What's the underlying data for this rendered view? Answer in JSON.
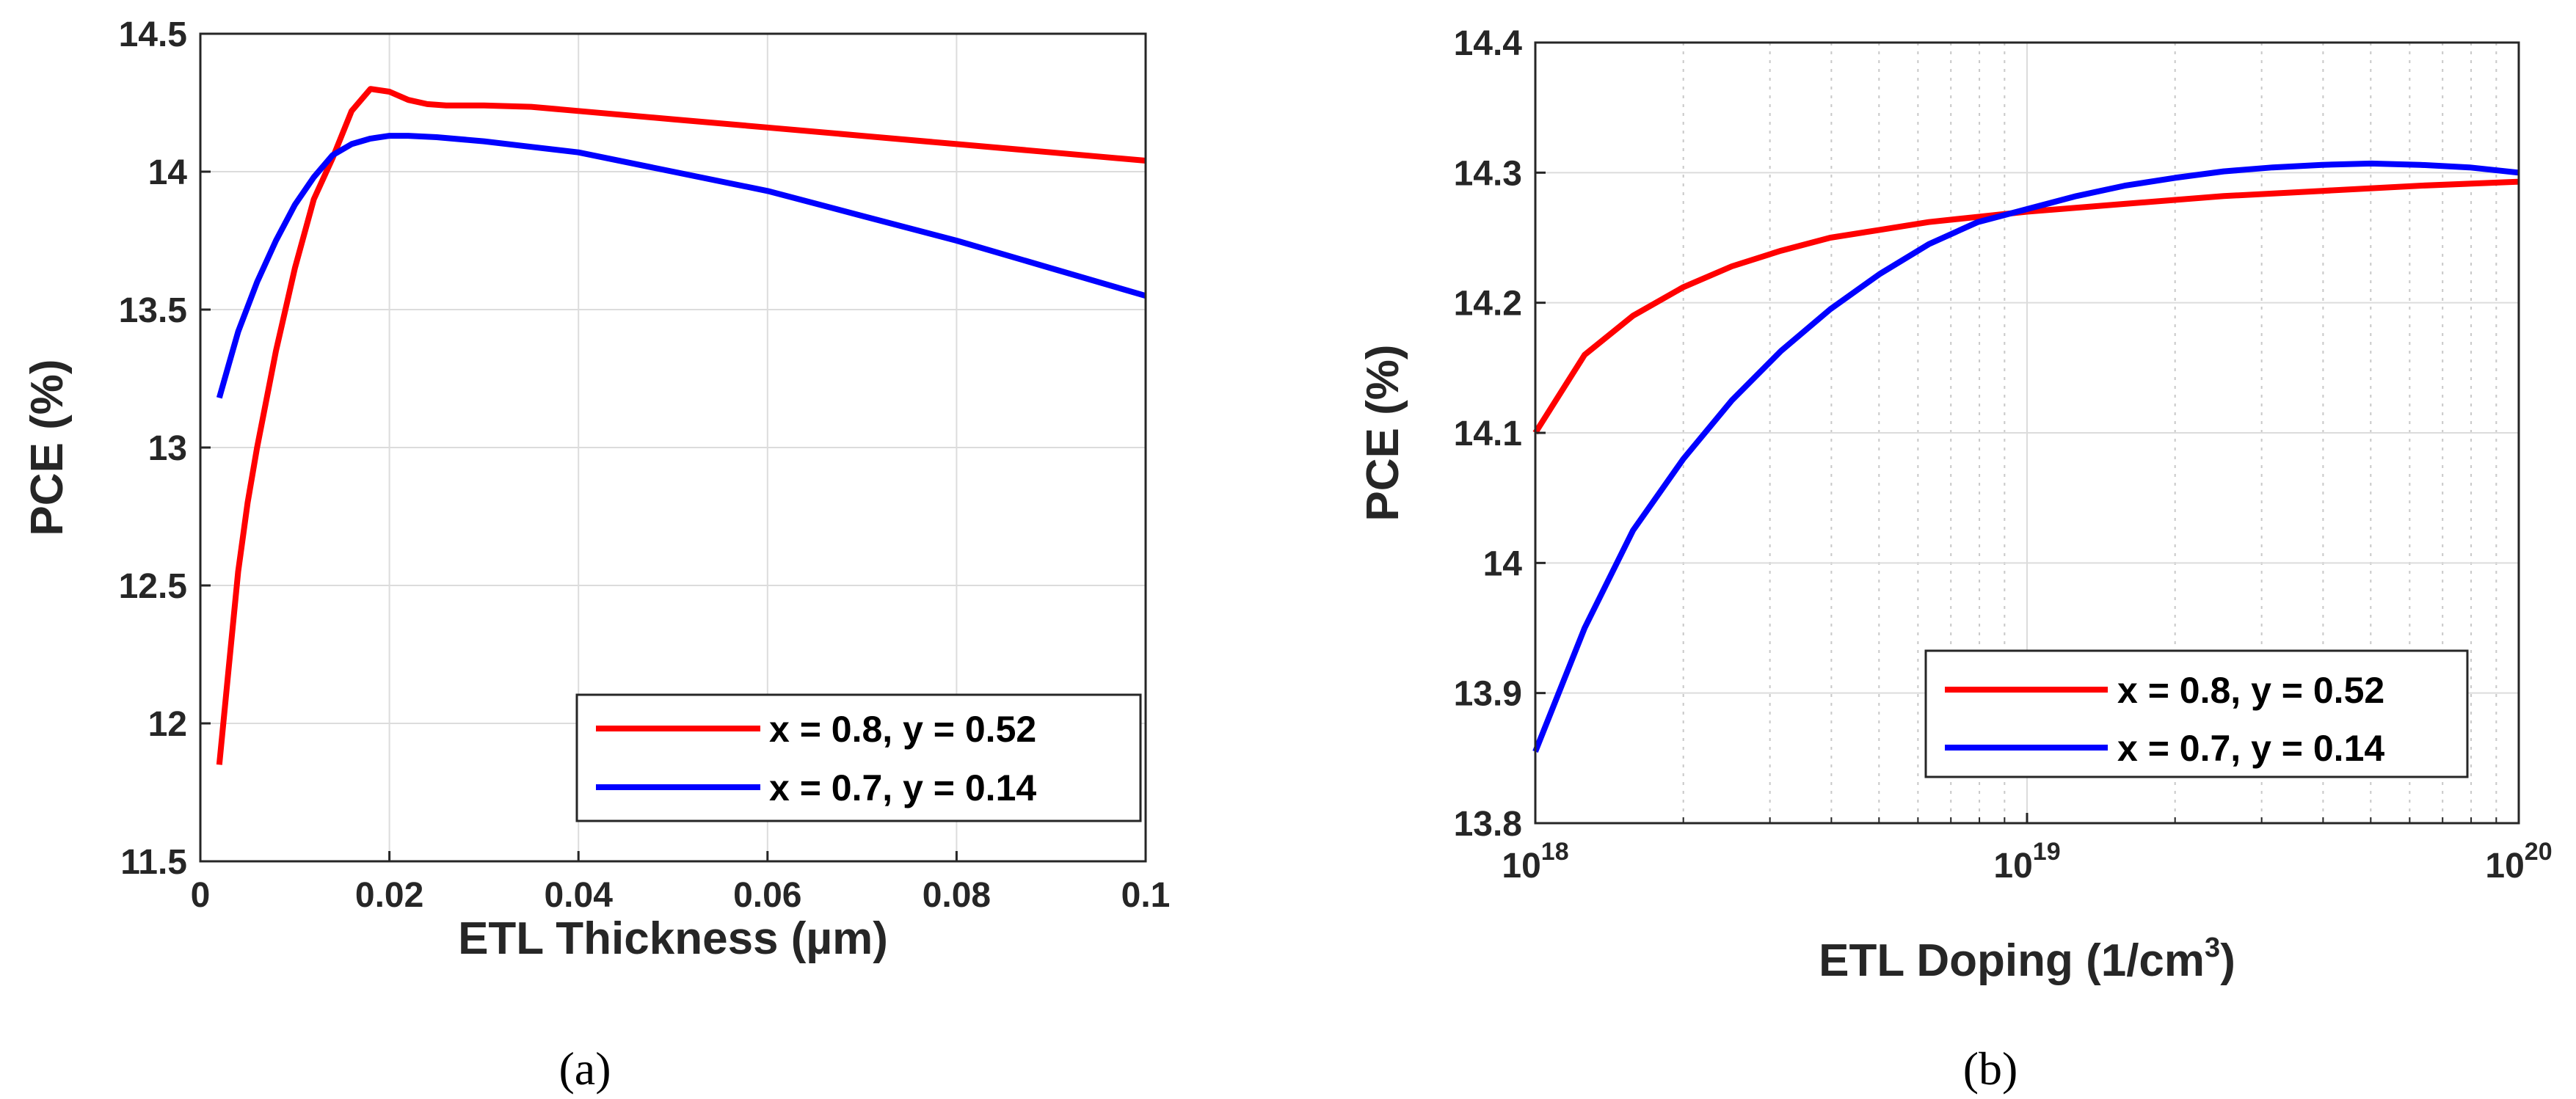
{
  "chart_data": [
    {
      "type": "line",
      "caption": "(a)",
      "xlabel": "ETL Thickness (µm)",
      "ylabel": "PCE (%)",
      "xlim": [
        0,
        0.1
      ],
      "ylim": [
        11.5,
        14.5
      ],
      "xscale": "linear",
      "x_tick_labels": [
        "0",
        "0.02",
        "0.04",
        "0.06",
        "0.08",
        "0.1"
      ],
      "y_tick_labels": [
        "11.5",
        "12",
        "12.5",
        "13",
        "13.5",
        "14",
        "14.5"
      ],
      "grid": true,
      "legend_position": "bottom-right",
      "series": [
        {
          "name": "x = 0.8, y = 0.52",
          "color": "#ff0000",
          "x": [
            0.002,
            0.003,
            0.004,
            0.005,
            0.006,
            0.008,
            0.01,
            0.012,
            0.014,
            0.016,
            0.018,
            0.02,
            0.022,
            0.024,
            0.026,
            0.03,
            0.035,
            0.04,
            0.05,
            0.06,
            0.07,
            0.08,
            0.09,
            0.1
          ],
          "y": [
            11.85,
            12.2,
            12.55,
            12.8,
            13.0,
            13.35,
            13.65,
            13.9,
            14.05,
            14.22,
            14.3,
            14.29,
            14.26,
            14.245,
            14.24,
            14.24,
            14.235,
            14.22,
            14.19,
            14.16,
            14.13,
            14.1,
            14.07,
            14.04
          ]
        },
        {
          "name": "x = 0.7, y = 0.14",
          "color": "#0000ff",
          "x": [
            0.002,
            0.003,
            0.004,
            0.006,
            0.008,
            0.01,
            0.012,
            0.014,
            0.016,
            0.018,
            0.02,
            0.022,
            0.025,
            0.03,
            0.035,
            0.04,
            0.05,
            0.06,
            0.07,
            0.08,
            0.09,
            0.1
          ],
          "y": [
            13.18,
            13.3,
            13.42,
            13.6,
            13.75,
            13.88,
            13.98,
            14.06,
            14.1,
            14.12,
            14.13,
            14.13,
            14.125,
            14.11,
            14.09,
            14.07,
            14.0,
            13.93,
            13.84,
            13.75,
            13.65,
            13.55
          ]
        }
      ]
    },
    {
      "type": "line",
      "caption": "(b)",
      "xlabel": "ETL Doping (1/cm",
      "xlabel_sup": "3",
      "xlabel_end": ")",
      "ylabel": "PCE (%)",
      "xlim": [
        1e+18,
        1e+20
      ],
      "ylim": [
        13.8,
        14.4
      ],
      "xscale": "log",
      "x_tick_labels": [
        {
          "base": "10",
          "exp": "18"
        },
        {
          "base": "10",
          "exp": "19"
        },
        {
          "base": "10",
          "exp": "20"
        }
      ],
      "y_tick_labels": [
        "13.8",
        "13.9",
        "14",
        "14.1",
        "14.2",
        "14.3",
        "14.4"
      ],
      "grid": true,
      "legend_position": "middle-right",
      "series": [
        {
          "name": "x = 0.8, y = 0.52",
          "color": "#ff0000",
          "x": [
            1e+18,
            1.26e+18,
            1.58e+18,
            2e+18,
            2.51e+18,
            3.16e+18,
            3.98e+18,
            5.01e+18,
            6.31e+18,
            7.94e+18,
            1e+19,
            1.58e+19,
            2.51e+19,
            3.98e+19,
            6.31e+19,
            1e+20
          ],
          "y": [
            14.1,
            14.16,
            14.19,
            14.212,
            14.228,
            14.24,
            14.25,
            14.256,
            14.262,
            14.266,
            14.27,
            14.276,
            14.282,
            14.286,
            14.29,
            14.293
          ]
        },
        {
          "name": "x = 0.7, y = 0.14",
          "color": "#0000ff",
          "x": [
            1e+18,
            1.26e+18,
            1.58e+18,
            2e+18,
            2.51e+18,
            3.16e+18,
            3.98e+18,
            5.01e+18,
            6.31e+18,
            7.94e+18,
            1e+19,
            1.26e+19,
            1.58e+19,
            2e+19,
            2.51e+19,
            3.16e+19,
            3.98e+19,
            5.01e+19,
            6.31e+19,
            7.94e+19,
            1e+20
          ],
          "y": [
            13.855,
            13.95,
            14.025,
            14.08,
            14.125,
            14.163,
            14.195,
            14.222,
            14.245,
            14.262,
            14.272,
            14.282,
            14.29,
            14.296,
            14.301,
            14.304,
            14.306,
            14.307,
            14.306,
            14.304,
            14.3
          ]
        }
      ]
    }
  ]
}
